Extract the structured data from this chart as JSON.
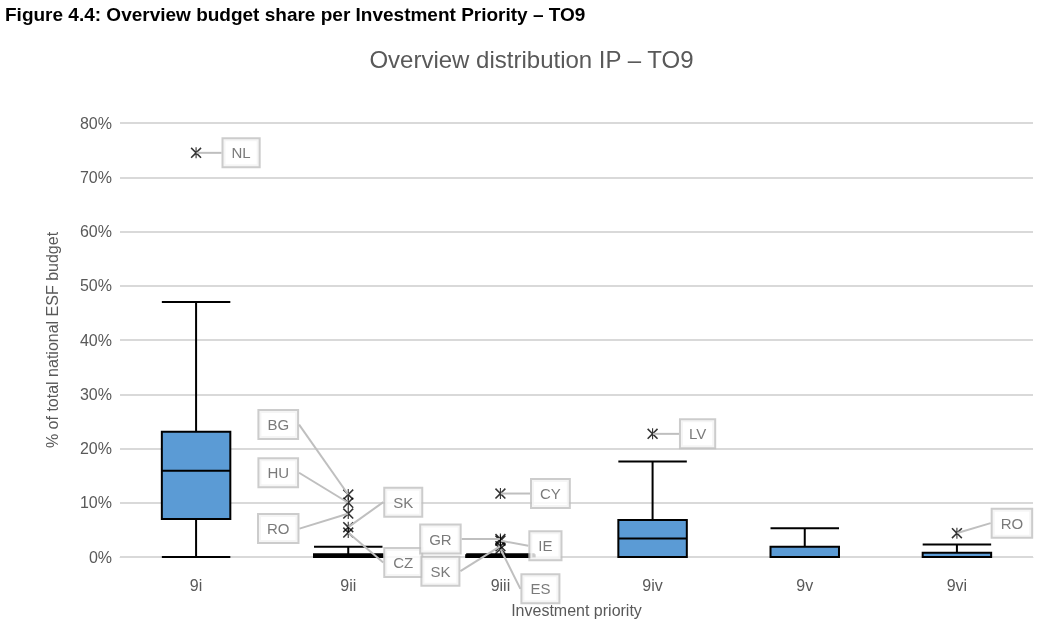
{
  "chart_data": {
    "type": "box",
    "title": "Figure 4.4: Overview budget share per Investment Priority – TO9",
    "subtitle": "Overview distribution IP – TO9",
    "xlabel": "Investment priority",
    "ylabel": "% of total national ESF budget",
    "categories": [
      "9i",
      "9ii",
      "9iii",
      "9iv",
      "9v",
      "9vi"
    ],
    "boxes": [
      {
        "low": 0,
        "q1": 7,
        "median": 15.9,
        "q3": 23.1,
        "high": 47
      },
      {
        "low": 0,
        "q1": 0,
        "median": 0.2,
        "q3": 0.5,
        "high": 1.9
      },
      {
        "low": 0,
        "q1": 0,
        "median": 0.1,
        "q3": 0.3,
        "high": 0.5
      },
      {
        "low": 0,
        "q1": 0,
        "median": 3.4,
        "q3": 6.8,
        "high": 17.6
      },
      {
        "low": 0,
        "q1": 0,
        "median": 0,
        "q3": 1.9,
        "high": 5.3
      },
      {
        "low": 0,
        "q1": 0,
        "median": 0,
        "q3": 0.8,
        "high": 2.3
      }
    ],
    "series": [
      {
        "type": "scatter",
        "color": "#000000",
        "x": [
          "9i",
          "9ii",
          "9ii",
          "9ii",
          "9ii",
          "9ii",
          "9iii",
          "9iii",
          "9iii",
          "9iii",
          "9iii",
          "9iv",
          "9vi"
        ],
        "values": [
          74.5,
          11.5,
          10,
          8,
          5.5,
          4.5,
          11.7,
          3.3,
          3,
          2,
          1.5,
          22.7,
          4.4
        ]
      }
    ],
    "color": "#5b9bd5",
    "marker": "cross",
    "grid": "y",
    "ylim": [
      0,
      80
    ],
    "yticks": [
      {
        "value": 0,
        "label": "0%"
      },
      {
        "value": 10,
        "label": "10%"
      },
      {
        "value": 20,
        "label": "20%"
      },
      {
        "value": 30,
        "label": "30%"
      },
      {
        "value": 40,
        "label": "40%"
      },
      {
        "value": 50,
        "label": "50%"
      },
      {
        "value": 60,
        "label": "60%"
      },
      {
        "value": 70,
        "label": "70%"
      },
      {
        "value": 80,
        "label": "80%"
      }
    ],
    "annotations": [
      {
        "text": "NL",
        "x": "9i",
        "y": 74.5
      },
      {
        "text": "BG",
        "x": "9ii",
        "y": 11.5
      },
      {
        "text": "HU",
        "x": "9ii",
        "y": 10
      },
      {
        "text": "RO",
        "x": "9ii",
        "y": 8
      },
      {
        "text": "SK",
        "x": "9ii",
        "y": 5.5
      },
      {
        "text": "CZ",
        "x": "9ii",
        "y": 4.5
      },
      {
        "text": "CY",
        "x": "9iii",
        "y": 11.7
      },
      {
        "text": "GR",
        "x": "9iii",
        "y": 3.3
      },
      {
        "text": "IE",
        "x": "9iii",
        "y": 3
      },
      {
        "text": "SK",
        "x": "9iii",
        "y": 2
      },
      {
        "text": "ES",
        "x": "9iii",
        "y": 1.5
      },
      {
        "text": "LV",
        "x": "9iv",
        "y": 22.7
      },
      {
        "text": "RO",
        "x": "9vi",
        "y": 4.4
      }
    ]
  }
}
